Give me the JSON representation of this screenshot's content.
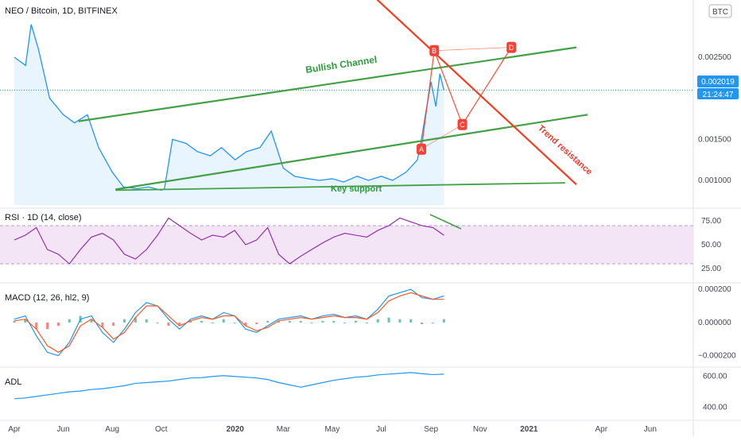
{
  "header": {
    "title": "NEO / Bitcoin, 1D, BITFINEX",
    "currency_button": "BTC"
  },
  "price_badges": {
    "price": "0.002019",
    "countdown": "21:24:47"
  },
  "annotations": {
    "bullish_channel": "Bullish Channel",
    "key_support": "Key support",
    "trend_resistance": "Trend resistance",
    "pattern_points": [
      "A",
      "B",
      "C",
      "D"
    ]
  },
  "colors": {
    "price_line": "#2196f3",
    "channel": "#43a047",
    "trend": "#f23f20",
    "rsi": "#8e24aa",
    "rsi_band": "#f3e5f5",
    "macd": "#2196f3",
    "signal": "#ff5722",
    "hist_pos": "#26a69a",
    "hist_neg": "#ef5350",
    "adl": "#2196f3",
    "point_badge": "#f44336"
  },
  "chart_data": [
    {
      "type": "line",
      "pane": "price",
      "title": "NEO / Bitcoin, 1D, BITFINEX",
      "x_ticks": [
        "Apr",
        "Jun",
        "Aug",
        "Oct",
        "2020",
        "Mar",
        "May",
        "Jul",
        "Sep",
        "Nov",
        "2021",
        "Apr",
        "Jun"
      ],
      "y_ticks": [
        "0.002500",
        "0.001500",
        "0.001000"
      ],
      "ylim": [
        0.0007,
        0.0031
      ],
      "x_start": "2019-04-01",
      "x": [
        "2019-04-01",
        "2019-04-15",
        "2019-04-22",
        "2019-05-01",
        "2019-05-15",
        "2019-06-01",
        "2019-06-15",
        "2019-07-01",
        "2019-07-15",
        "2019-08-01",
        "2019-08-15",
        "2019-09-01",
        "2019-09-15",
        "2019-10-01",
        "2019-10-05",
        "2019-10-15",
        "2019-11-01",
        "2019-11-15",
        "2019-12-01",
        "2019-12-15",
        "2020-01-01",
        "2020-01-15",
        "2020-02-01",
        "2020-02-15",
        "2020-03-01",
        "2020-03-15",
        "2020-04-01",
        "2020-04-15",
        "2020-05-01",
        "2020-05-15",
        "2020-06-01",
        "2020-06-15",
        "2020-07-01",
        "2020-07-15",
        "2020-08-01",
        "2020-08-15",
        "2020-08-20",
        "2020-08-25",
        "2020-09-01",
        "2020-09-07",
        "2020-09-12",
        "2020-09-17"
      ],
      "values": [
        0.0025,
        0.0024,
        0.0029,
        0.0026,
        0.002,
        0.0018,
        0.0017,
        0.0018,
        0.0014,
        0.0011,
        0.00092,
        0.0009,
        0.00092,
        0.00088,
        0.0009,
        0.0015,
        0.00145,
        0.00135,
        0.0013,
        0.0014,
        0.00125,
        0.00135,
        0.0014,
        0.0016,
        0.00115,
        0.00105,
        0.00102,
        0.001,
        0.00102,
        0.00098,
        0.00105,
        0.001,
        0.00105,
        0.001,
        0.0011,
        0.00125,
        0.0015,
        0.0018,
        0.0022,
        0.0019,
        0.0023,
        0.0021
      ],
      "bullish_channel_upper": [
        [
          "2019-06-20",
          0.00172
        ],
        [
          "2021-03-01",
          0.00262
        ]
      ],
      "bullish_channel_lower": [
        [
          "2019-08-05",
          0.00089
        ],
        [
          "2021-03-15",
          0.0018
        ]
      ],
      "key_support": [
        [
          "2019-08-05",
          0.00088
        ],
        [
          "2021-02-15",
          0.00097
        ]
      ],
      "trend_resistance": [
        [
          "2020-06-15",
          0.0033
        ],
        [
          "2021-03-01",
          0.00095
        ]
      ],
      "pattern_points": {
        "A": [
          "2020-08-20",
          0.00138
        ],
        "B": [
          "2020-09-05",
          0.00258
        ],
        "C": [
          "2020-10-10",
          0.00168
        ],
        "D": [
          "2020-12-10",
          0.00262
        ]
      }
    },
    {
      "type": "line",
      "pane": "rsi",
      "title": "RSI · 1D (14, close)",
      "y_ticks": [
        "75.00",
        "50.00",
        "25.00"
      ],
      "ylim": [
        15,
        85
      ],
      "band": [
        30,
        70
      ],
      "values": [
        55,
        60,
        68,
        45,
        40,
        30,
        45,
        58,
        62,
        55,
        40,
        35,
        45,
        60,
        78,
        70,
        62,
        55,
        60,
        58,
        65,
        50,
        55,
        68,
        40,
        30,
        38,
        45,
        52,
        58,
        62,
        60,
        58,
        65,
        70,
        78,
        74,
        70,
        68,
        60
      ]
    },
    {
      "type": "line",
      "pane": "macd",
      "title": "MACD (12, 26, hl2, 9)",
      "y_ticks": [
        "0.000200",
        "0.000000",
        "−0.000200"
      ],
      "ylim": [
        -0.00025,
        0.00022
      ],
      "macd": [
        2e-05,
        4e-05,
        -8e-05,
        -0.00018,
        -0.0002,
        -0.00012,
        2e-05,
        4e-05,
        -6e-05,
        -0.00012,
        -4e-05,
        6e-05,
        0.00012,
        0.0001,
        2e-05,
        -4e-05,
        2e-05,
        4e-05,
        2e-05,
        6e-05,
        4e-05,
        -4e-05,
        -6e-05,
        -2e-05,
        2e-05,
        3e-05,
        4e-05,
        2e-05,
        4e-05,
        5e-05,
        3e-05,
        4e-05,
        2e-05,
        8e-05,
        0.00016,
        0.00018,
        0.0002,
        0.00015,
        0.00014,
        0.00016
      ],
      "signal": [
        1e-05,
        2e-05,
        -4e-05,
        -0.00014,
        -0.00018,
        -0.00014,
        -2e-05,
        2e-05,
        -3e-05,
        -0.0001,
        -6e-05,
        3e-05,
        0.0001,
        0.0001,
        4e-05,
        -2e-05,
        1e-05,
        3e-05,
        2e-05,
        4e-05,
        4e-05,
        -2e-05,
        -5e-05,
        -3e-05,
        1e-05,
        2e-05,
        3e-05,
        2e-05,
        3e-05,
        4e-05,
        3e-05,
        3e-05,
        2e-05,
        6e-05,
        0.00013,
        0.00016,
        0.00018,
        0.00016,
        0.00014,
        0.00014
      ]
    },
    {
      "type": "line",
      "pane": "adl",
      "title": "ADL",
      "y_ticks": [
        "600.00",
        "400.00"
      ],
      "ylim": [
        330,
        640
      ],
      "values": [
        455,
        460,
        470,
        480,
        490,
        500,
        505,
        515,
        520,
        530,
        540,
        555,
        560,
        565,
        570,
        580,
        590,
        592,
        600,
        605,
        600,
        595,
        590,
        580,
        560,
        545,
        530,
        545,
        560,
        575,
        585,
        595,
        600,
        610,
        615,
        620,
        625,
        618,
        612,
        615
      ]
    }
  ]
}
